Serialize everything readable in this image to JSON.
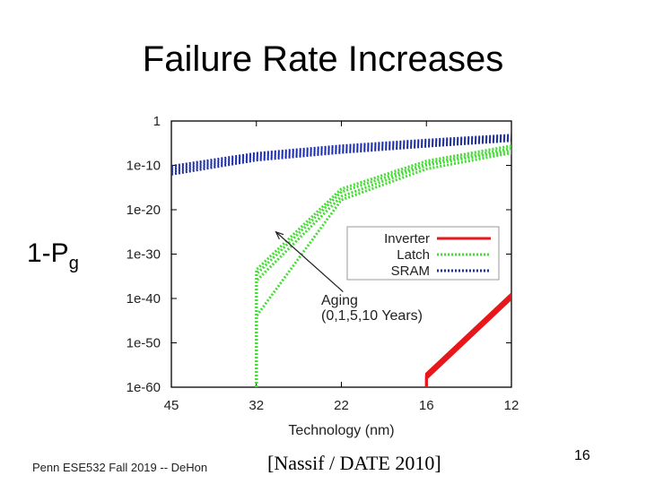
{
  "slide": {
    "title": "Failure Rate Increases",
    "ylabel_main": "1-P",
    "ylabel_sub": "g",
    "footer": "Penn ESE532 Fall 2019 -- DeHon",
    "citation": "[Nassif / DATE 2010]",
    "page_number": "16"
  },
  "chart_data": {
    "type": "line",
    "title": "",
    "xlabel": "Technology (nm)",
    "ylabel": "",
    "x_categories": [
      "45",
      "32",
      "22",
      "16",
      "12"
    ],
    "y_ticks": [
      {
        "exp": 0,
        "label": "1"
      },
      {
        "exp": -10,
        "label": "1e-10"
      },
      {
        "exp": -20,
        "label": "1e-20"
      },
      {
        "exp": -30,
        "label": "1e-30"
      },
      {
        "exp": -40,
        "label": "1e-40"
      },
      {
        "exp": -50,
        "label": "1e-50"
      },
      {
        "exp": -60,
        "label": "1e-60"
      }
    ],
    "y_scale": "log10",
    "ylim_exp": [
      -60,
      0
    ],
    "xlim_idx": [
      0,
      4
    ],
    "series": [
      {
        "name": "Inverter",
        "color": "#e8171b",
        "dash": "solid",
        "lines": [
          [
            [
              3,
              -60
            ],
            [
              3,
              -57
            ],
            [
              4,
              -39
            ]
          ],
          [
            [
              3,
              -60
            ],
            [
              3,
              -57.5
            ],
            [
              4,
              -39.5
            ]
          ],
          [
            [
              3,
              -60
            ],
            [
              3,
              -58
            ],
            [
              4,
              -40
            ]
          ]
        ]
      },
      {
        "name": "Latch",
        "color": "#44dd33",
        "dash": "dotted",
        "lines": [
          [
            [
              1,
              -60
            ],
            [
              1,
              -33.5
            ],
            [
              2,
              -15.3
            ],
            [
              3,
              -9
            ],
            [
              4,
              -5.6
            ]
          ],
          [
            [
              1,
              -60
            ],
            [
              1,
              -34.5
            ],
            [
              2,
              -16
            ],
            [
              3,
              -9.6
            ],
            [
              4,
              -6.2
            ]
          ],
          [
            [
              1,
              -60
            ],
            [
              1,
              -36
            ],
            [
              2,
              -17
            ],
            [
              3,
              -10
            ],
            [
              4,
              -6.6
            ]
          ],
          [
            [
              1,
              -60
            ],
            [
              1,
              -44
            ],
            [
              2,
              -17.8
            ],
            [
              3,
              -10.8
            ],
            [
              4,
              -7.2
            ]
          ]
        ]
      },
      {
        "name": "SRAM",
        "color": "#1f2fa8",
        "dash": "dotted",
        "lines": [
          [
            [
              0,
              -10.2
            ],
            [
              1,
              -7.3
            ],
            [
              2,
              -5.6
            ],
            [
              3,
              -4.3
            ],
            [
              4,
              -3.2
            ]
          ],
          [
            [
              0,
              -10.8
            ],
            [
              1,
              -7.8
            ],
            [
              2,
              -6.1
            ],
            [
              3,
              -4.7
            ],
            [
              4,
              -3.6
            ]
          ],
          [
            [
              0,
              -11.4
            ],
            [
              1,
              -8.3
            ],
            [
              2,
              -6.6
            ],
            [
              3,
              -5.2
            ],
            [
              4,
              -4.0
            ]
          ],
          [
            [
              0,
              -12.0
            ],
            [
              1,
              -8.8
            ],
            [
              2,
              -7.1
            ],
            [
              3,
              -5.7
            ],
            [
              4,
              -4.4
            ]
          ]
        ]
      }
    ],
    "legend": {
      "position": "right",
      "entries": [
        "Inverter",
        "Latch",
        "SRAM"
      ]
    },
    "annotation": {
      "line1": "Aging",
      "line2": "(0,1,5,10 Years)",
      "arrow_from": [
        2.02,
        -38.5
      ],
      "arrow_to": [
        1.23,
        -25
      ]
    }
  }
}
